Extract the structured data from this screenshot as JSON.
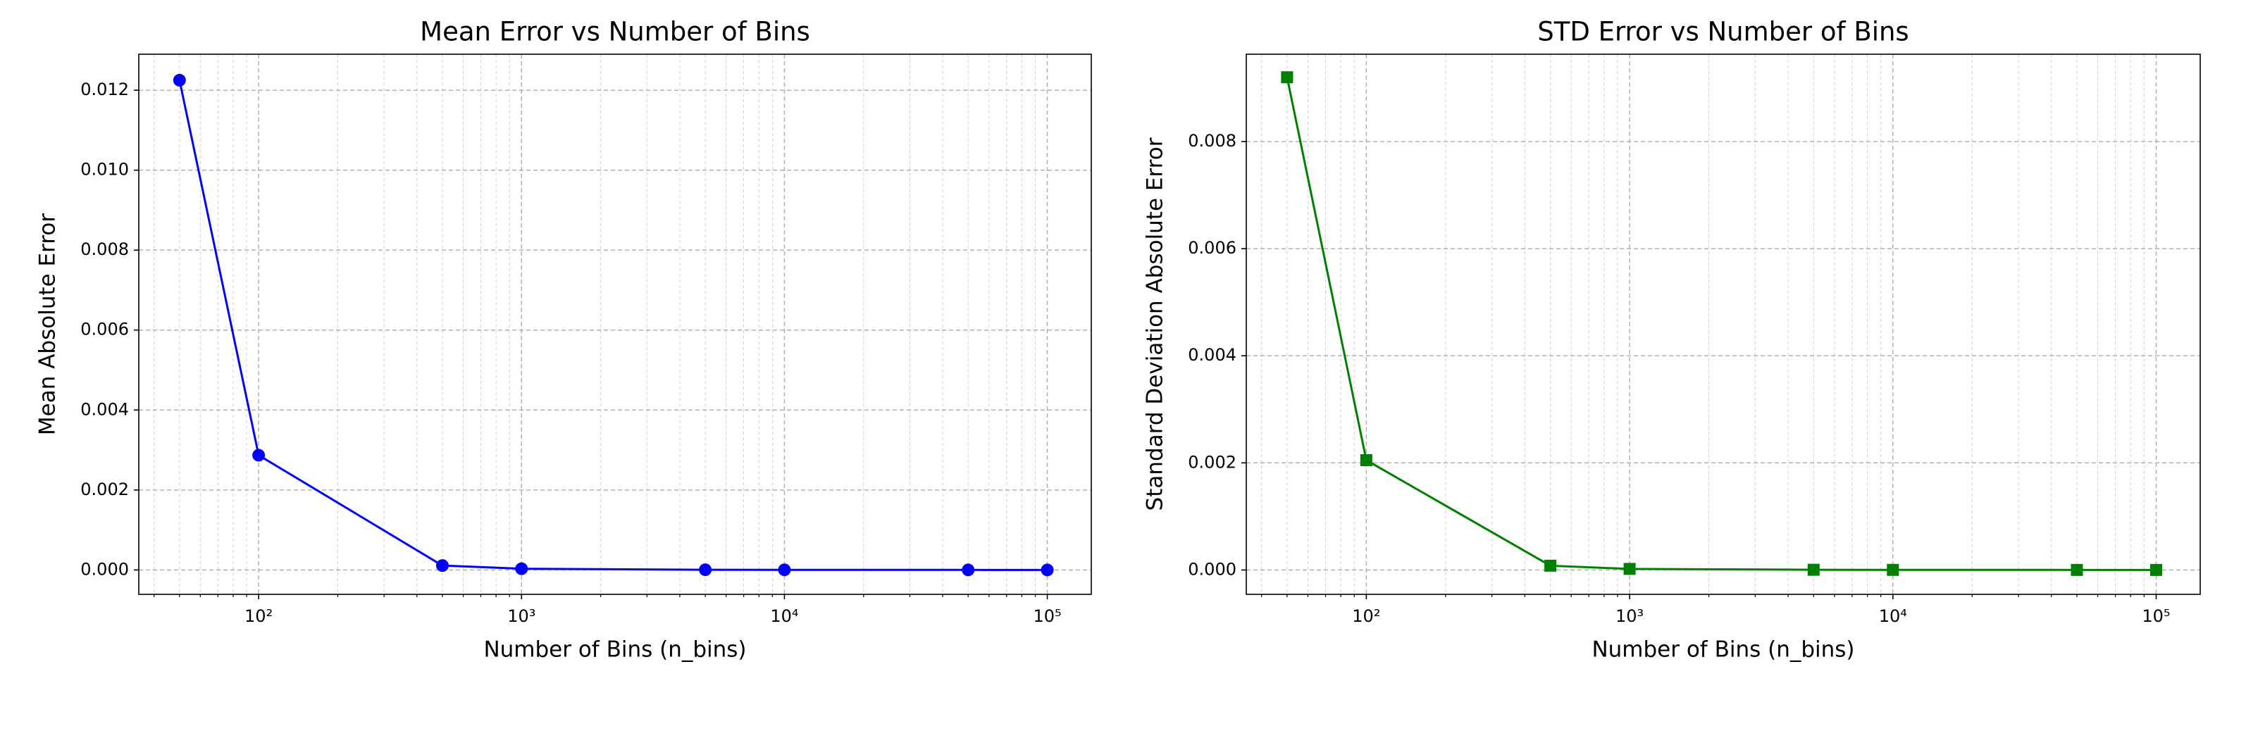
{
  "chart_data": [
    {
      "type": "line",
      "title": "Mean Error vs Number of Bins",
      "x_label": "Number of Bins (n_bins)",
      "y_label": "Mean Absolute Error",
      "x": [
        50,
        100,
        500,
        1000,
        5000,
        10000,
        50000,
        100000
      ],
      "series": [
        {
          "name": "Mean Absolute Error",
          "color": "#0000ff",
          "marker": "circle",
          "values": [
            0.01225,
            0.00287,
            0.00011,
            3e-05,
            5e-06,
            3e-06,
            1e-06,
            5e-07
          ]
        }
      ],
      "xlog": true,
      "xlim": [
        35,
        147000
      ],
      "ylim": [
        -0.00061,
        0.0129
      ],
      "grid": true,
      "xticks": [
        {
          "value": 100,
          "label": "10²"
        },
        {
          "value": 1000,
          "label": "10³"
        },
        {
          "value": 10000,
          "label": "10⁴"
        },
        {
          "value": 100000,
          "label": "10⁵"
        }
      ],
      "yticks": [
        {
          "value": 0,
          "label": "0.000"
        },
        {
          "value": 0.002,
          "label": "0.002"
        },
        {
          "value": 0.004,
          "label": "0.004"
        },
        {
          "value": 0.006,
          "label": "0.006"
        },
        {
          "value": 0.008,
          "label": "0.008"
        },
        {
          "value": 0.01,
          "label": "0.010"
        },
        {
          "value": 0.012,
          "label": "0.012"
        }
      ]
    },
    {
      "type": "line",
      "title": "STD Error vs Number of Bins",
      "x_label": "Number of Bins (n_bins)",
      "y_label": "Standard Deviation Absolute Error",
      "x": [
        50,
        100,
        500,
        1000,
        5000,
        10000,
        50000,
        100000
      ],
      "series": [
        {
          "name": "Standard Deviation Absolute Error",
          "color": "#008000",
          "marker": "square",
          "values": [
            0.0092,
            0.00205,
            8e-05,
            2e-05,
            4e-06,
            2e-06,
            1e-06,
            4e-07
          ]
        }
      ],
      "xlog": true,
      "xlim": [
        35,
        147000
      ],
      "ylim": [
        -0.000455,
        0.00963
      ],
      "grid": true,
      "xticks": [
        {
          "value": 100,
          "label": "10²"
        },
        {
          "value": 1000,
          "label": "10³"
        },
        {
          "value": 10000,
          "label": "10⁴"
        },
        {
          "value": 100000,
          "label": "10⁵"
        }
      ],
      "yticks": [
        {
          "value": 0,
          "label": "0.000"
        },
        {
          "value": 0.002,
          "label": "0.002"
        },
        {
          "value": 0.004,
          "label": "0.004"
        },
        {
          "value": 0.006,
          "label": "0.006"
        },
        {
          "value": 0.008,
          "label": "0.008"
        }
      ]
    }
  ]
}
